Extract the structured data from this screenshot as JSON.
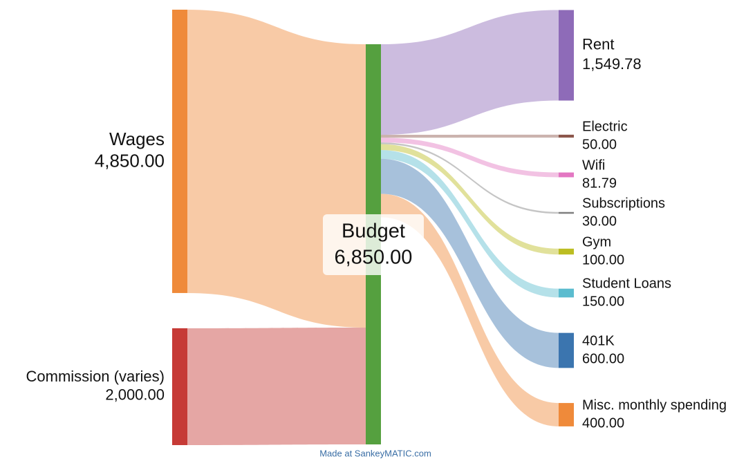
{
  "chart_data": {
    "type": "sankey",
    "sources": {
      "names": [
        "Wages",
        "Commission (varies)"
      ],
      "values": [
        4850,
        2000
      ],
      "value_labels": [
        "4,850.00",
        "2,000.00"
      ],
      "colors": [
        "#ef8a3a",
        "#c63a36"
      ]
    },
    "center": {
      "name": "Budget",
      "value": 6850,
      "value_label": "6,850.00",
      "color": "#55a03f"
    },
    "targets": {
      "names": [
        "Rent",
        "Electric",
        "Wifi",
        "Subscriptions",
        "Gym",
        "Student Loans",
        "401K",
        "Misc. monthly spending"
      ],
      "values": [
        1549.78,
        50,
        81.79,
        30,
        100,
        150,
        600,
        400
      ],
      "value_labels": [
        "1,549.78",
        "50.00",
        "81.79",
        "30.00",
        "100.00",
        "150.00",
        "600.00",
        "400.00"
      ],
      "colors": [
        "#8e6bb8",
        "#8c564b",
        "#e377c2",
        "#7f7f7f",
        "#bcbd22",
        "#5bbccf",
        "#3b75af",
        "#ef8a3a"
      ]
    },
    "credit": "Made at SankeyMATIC.com"
  }
}
